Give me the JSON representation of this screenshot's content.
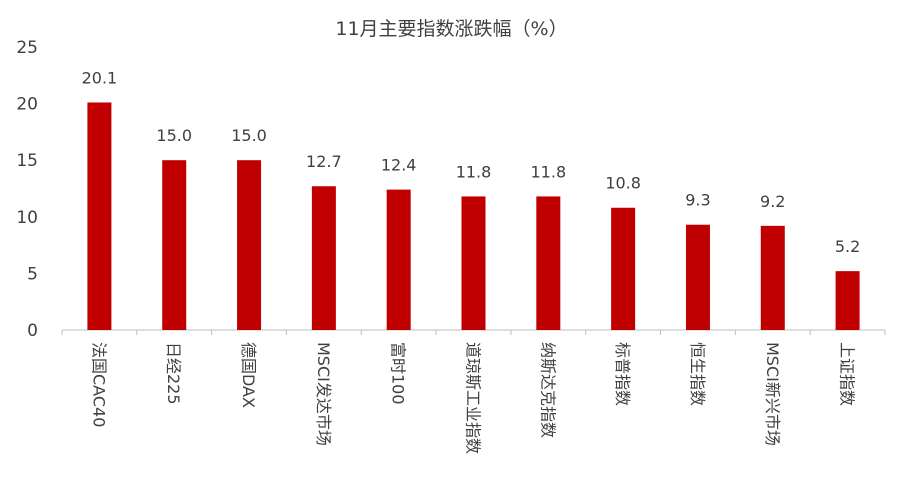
{
  "chart_data": {
    "type": "bar",
    "title": "11月主要指数涨跌幅（%）",
    "xlabel": "",
    "ylabel": "",
    "ylim": [
      0,
      25
    ],
    "yticks": [
      "0",
      "5",
      "10",
      "15",
      "20",
      "25"
    ],
    "grid": false,
    "legend": "none",
    "bar_color": "#C00000",
    "categories": [
      "法国CAC40",
      "日经225",
      "德国DAX",
      "MSCI发达市场",
      "富时100",
      "道琼斯工业指数",
      "纳斯达克指数",
      "标普指数",
      "恒生指数",
      "MSCI新兴市场",
      "上证指数"
    ],
    "values": [
      20.1,
      15.0,
      15.0,
      12.7,
      12.4,
      11.8,
      11.8,
      10.8,
      9.3,
      9.2,
      5.2
    ],
    "data_labels": [
      "20.1",
      "15.0",
      "15.0",
      "12.7",
      "12.4",
      "11.8",
      "11.8",
      "10.8",
      "9.3",
      "9.2",
      "5.2"
    ]
  }
}
